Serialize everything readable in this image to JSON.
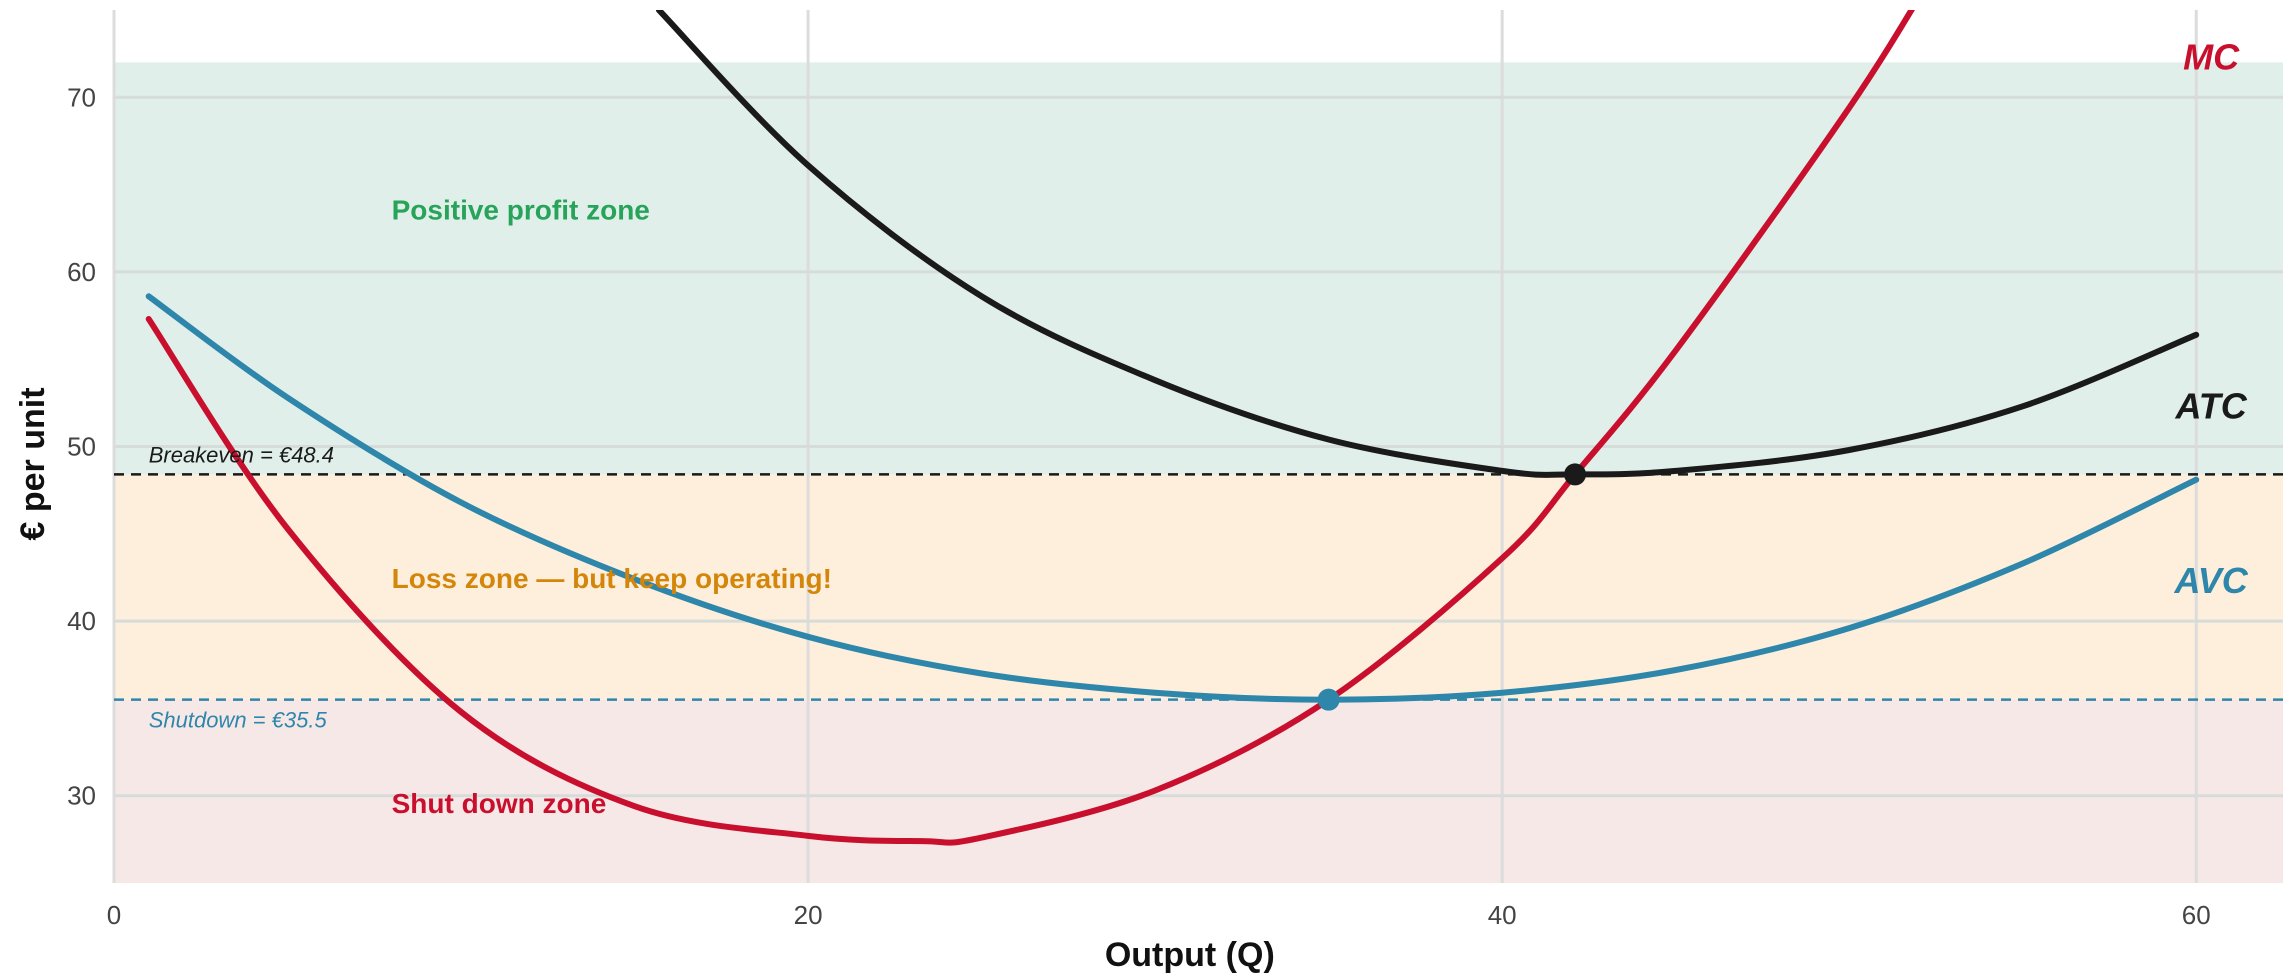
{
  "chart_data": {
    "type": "line",
    "xlabel": "Output (Q)",
    "ylabel": "€ per unit",
    "xlim": [
      0,
      62.5
    ],
    "ylim": [
      25,
      75
    ],
    "x_ticks": [
      "0",
      "20",
      "40",
      "60"
    ],
    "y_ticks": [
      "30",
      "40",
      "50",
      "60",
      "70"
    ],
    "grid": true,
    "series": [
      {
        "name": "MC",
        "color": "#c8102e",
        "x": [
          1,
          5,
          10,
          15,
          20,
          23.3,
          25,
          30,
          35,
          40,
          42.1,
          45,
          50,
          52.4
        ],
        "y": [
          57.3,
          45.3,
          34.8,
          29.4,
          27.7,
          27.4,
          27.6,
          30.3,
          35.5,
          43.6,
          48.4,
          55.5,
          69.4,
          77
        ]
      },
      {
        "name": "AVC",
        "color": "#2e86ab",
        "x": [
          1,
          5,
          10,
          15,
          20,
          25,
          30,
          35,
          40,
          45,
          50,
          55,
          60
        ],
        "y": [
          58.6,
          52.8,
          46.8,
          42.4,
          39.1,
          37,
          35.9,
          35.5,
          35.9,
          37.2,
          39.6,
          43.3,
          48.1
        ]
      },
      {
        "name": "ATC",
        "color": "#1a1a1a",
        "x": [
          15.7,
          20,
          25,
          30,
          35,
          40,
          42.1,
          45,
          50,
          55,
          60
        ],
        "y": [
          75,
          66.1,
          58.6,
          53.8,
          50.4,
          48.6,
          48.4,
          48.6,
          49.8,
          52.3,
          56.4
        ]
      }
    ],
    "reference_lines": [
      {
        "name": "breakeven",
        "y": 48.4,
        "label": "Breakeven = €48.4",
        "color": "#1a1a1a"
      },
      {
        "name": "shutdown",
        "y": 35.5,
        "label": "Shutdown = €35.5",
        "color": "#2e86ab"
      }
    ],
    "points": [
      {
        "name": "breakeven",
        "x": 42.1,
        "y": 48.4,
        "color": "#1a1a1a"
      },
      {
        "name": "shutdown",
        "x": 35,
        "y": 35.5,
        "color": "#2e86ab"
      }
    ],
    "zones": [
      {
        "name": "profit",
        "from": 48.4,
        "to": 72,
        "color": "#e1efea",
        "label": "Positive profit zone",
        "label_color": "#27a35a",
        "label_x": 8,
        "label_y": 63
      },
      {
        "name": "loss",
        "from": 35.5,
        "to": 48.4,
        "color": "#fdefdc",
        "label": "Loss zone — but keep operating!",
        "label_color": "#d4860b",
        "label_x": 8,
        "label_y": 41.9
      },
      {
        "name": "shutdown",
        "from": 25,
        "to": 35.5,
        "color": "#f7e8e8",
        "label": "Shut down zone",
        "label_color": "#c8102e",
        "label_x": 8,
        "label_y": 29
      }
    ],
    "curve_labels": [
      {
        "text": "MC",
        "x": 58.7,
        "y": 71.6,
        "color": "#c8102e"
      },
      {
        "text": "ATC",
        "x": 58.7,
        "y": 51.6,
        "color": "#1a1a1a"
      },
      {
        "text": "AVC",
        "x": 58.7,
        "y": 41.6,
        "color": "#2e86ab"
      }
    ]
  }
}
